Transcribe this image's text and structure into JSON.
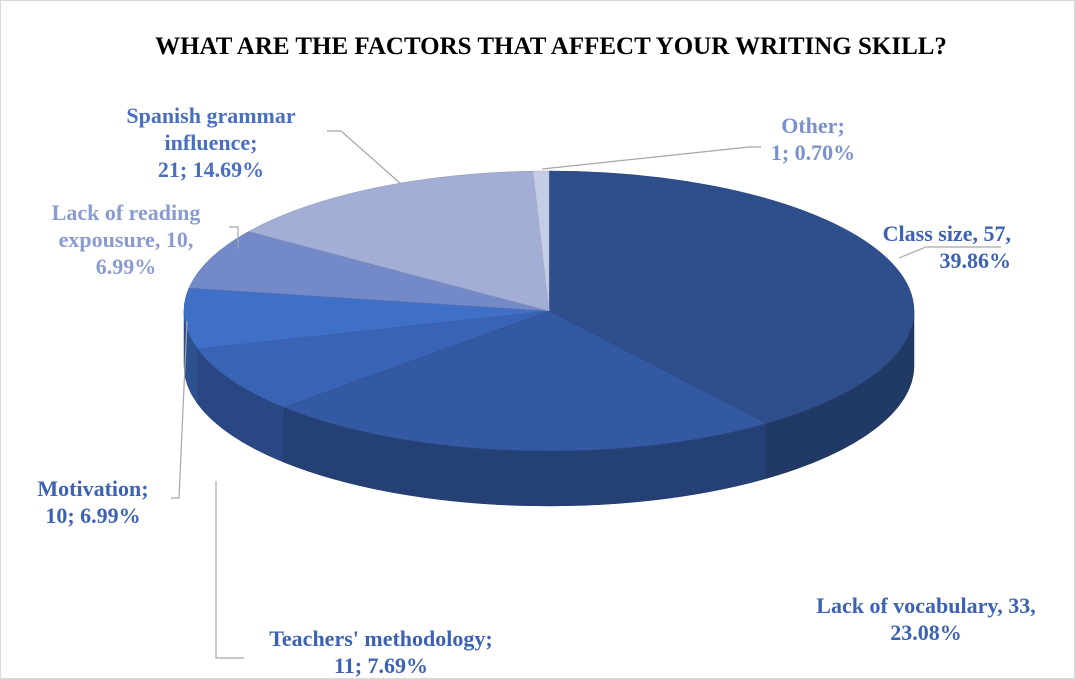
{
  "chart_data": {
    "type": "pie3d",
    "title": "WHAT ARE THE FACTORS THAT AFFECT YOUR WRITING SKILL?",
    "values": [
      57,
      33,
      11,
      10,
      10,
      21,
      1
    ],
    "value_labels": [
      [
        "Class size, 57,",
        "39.86%"
      ],
      [
        "Lack of vocabulary, 33,",
        "23.08%"
      ],
      [
        "Teachers' methodology;",
        "11; 7.69%"
      ],
      [
        "Motivation;",
        "10; 6.99%"
      ],
      [
        "Lack of reading",
        "expousure, 10,",
        "6.99%"
      ],
      [
        "Spanish grammar",
        "influence;",
        "21; 14.69%"
      ],
      [
        "Other;",
        "1; 0.70%"
      ]
    ],
    "colors": [
      "#2e4f8c",
      "#3459a3",
      "#3963b5",
      "#3f6fc6",
      "#7489c8",
      "#a2aed5",
      "#c5cce5"
    ]
  }
}
